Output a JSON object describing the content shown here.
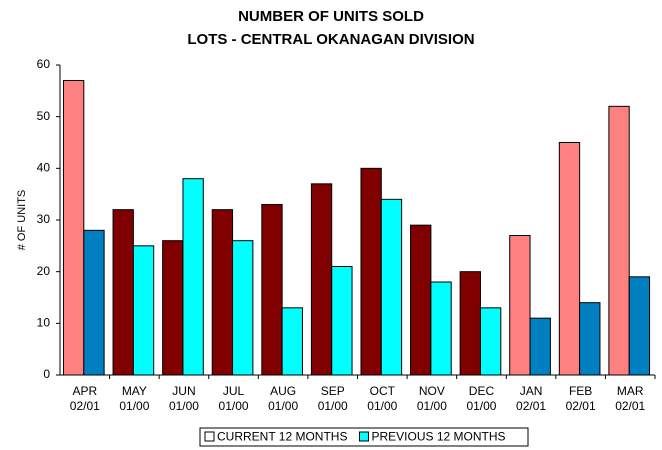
{
  "chart_data": {
    "type": "bar",
    "title": [
      "NUMBER OF UNITS SOLD",
      "LOTS - CENTRAL OKANAGAN DIVISION"
    ],
    "y_label": "# OF UNITS",
    "categories": [
      [
        "APR",
        "02/01"
      ],
      [
        "MAY",
        "01/00"
      ],
      [
        "JUN",
        "01/00"
      ],
      [
        "JUL",
        "01/00"
      ],
      [
        "AUG",
        "01/00"
      ],
      [
        "SEP",
        "01/00"
      ],
      [
        "OCT",
        "01/00"
      ],
      [
        "NOV",
        "01/00"
      ],
      [
        "DEC",
        "01/00"
      ],
      [
        "JAN",
        "02/01"
      ],
      [
        "FEB",
        "02/01"
      ],
      [
        "MAR",
        "02/01"
      ]
    ],
    "series": [
      {
        "name": "CURRENT 12 MONTHS",
        "color": "#ffffff",
        "colors": [
          "#ff8080",
          "#800000",
          "#800000",
          "#800000",
          "#800000",
          "#800000",
          "#800000",
          "#800000",
          "#800000",
          "#ff8080",
          "#ff8080",
          "#ff8080"
        ],
        "values": [
          57,
          32,
          26,
          32,
          33,
          37,
          40,
          29,
          20,
          27,
          45,
          52
        ]
      },
      {
        "name": "PREVIOUS 12 MONTHS",
        "color": "#00ffff",
        "colors": [
          "#0080c0",
          "#00ffff",
          "#00ffff",
          "#00ffff",
          "#00ffff",
          "#00ffff",
          "#00ffff",
          "#00ffff",
          "#00ffff",
          "#0080c0",
          "#0080c0",
          "#0080c0"
        ],
        "values": [
          28,
          25,
          38,
          26,
          13,
          21,
          34,
          18,
          13,
          11,
          14,
          19
        ]
      }
    ],
    "ylim": [
      0,
      60
    ],
    "yticks": [
      0,
      10,
      20,
      30,
      40,
      50,
      60
    ],
    "grid": false
  }
}
